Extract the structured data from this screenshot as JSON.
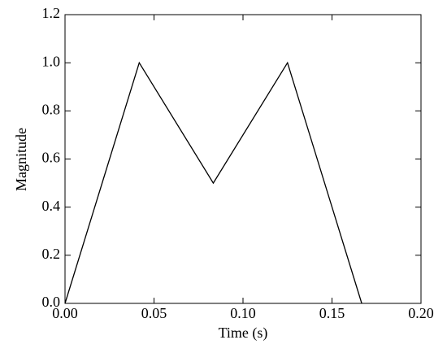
{
  "chart_data": {
    "type": "line",
    "x_label": "Time (s)",
    "y_label": "Magnitude",
    "x": [
      0,
      0.0417,
      0.0833,
      0.125,
      0.1667
    ],
    "series": [
      {
        "name": "Magnitude",
        "color": "#000000",
        "values": [
          0,
          1.0,
          0.5,
          1.0,
          0
        ]
      }
    ],
    "xlim": [
      0,
      0.2
    ],
    "xticks": [
      {
        "value": 0,
        "label": "0.00"
      },
      0.05,
      {
        "value": 0.1,
        "label": "0.10"
      },
      0.15,
      {
        "value": 0.2,
        "label": "0.20"
      }
    ],
    "ylim": [
      0,
      1.2
    ],
    "yticks": [
      {
        "value": 0,
        "label": "0.0"
      },
      0.2,
      0.4,
      0.6,
      0.8,
      {
        "value": 1.0,
        "label": "1.0"
      },
      1.2
    ],
    "grid": false
  }
}
